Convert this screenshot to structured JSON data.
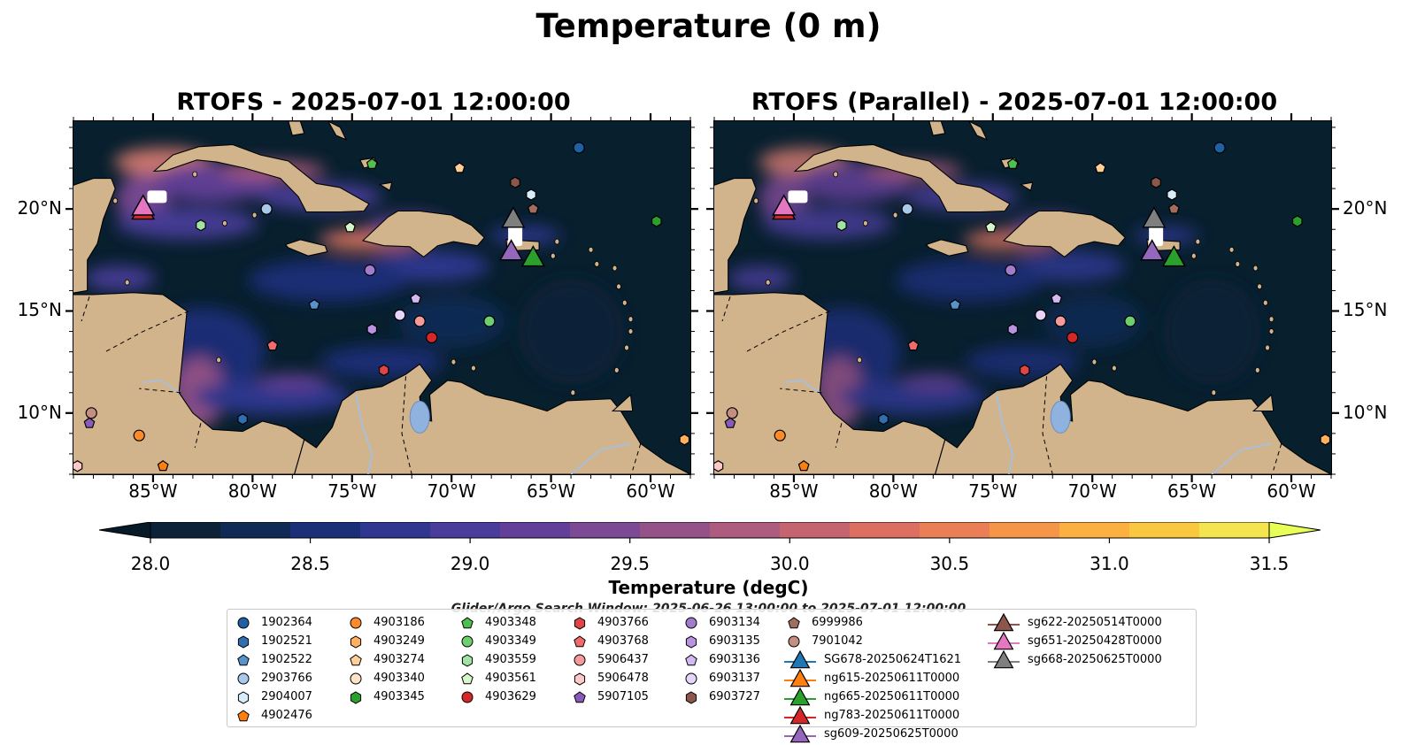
{
  "figure": {
    "title": "Temperature (0 m)",
    "search_window": "Glider/Argo Search Window: 2025-06-26 13:00:00 to 2025-07-01 12:00:00"
  },
  "panels": [
    {
      "title": "RTOFS - 2025-07-01 12:00:00"
    },
    {
      "title": "RTOFS (Parallel) - 2025-07-01 12:00:00"
    }
  ],
  "map_extent": {
    "lon_min": -89.0,
    "lon_max": -58.0,
    "lat_min": 7.0,
    "lat_max": 24.3
  },
  "axes": {
    "lon_ticks": [
      -85,
      -80,
      -75,
      -70,
      -65,
      -60
    ],
    "lon_labels": [
      "85°W",
      "80°W",
      "75°W",
      "70°W",
      "65°W",
      "60°W"
    ],
    "lat_ticks": [
      10,
      15,
      20
    ],
    "lat_labels": [
      "10°N",
      "15°N",
      "20°N"
    ]
  },
  "colorbar": {
    "label": "Temperature (degC)",
    "min": 28.0,
    "max": 31.5,
    "step": 0.25,
    "ticks": [
      28.0,
      28.5,
      29.0,
      29.5,
      30.0,
      30.5,
      31.0,
      31.5
    ],
    "tick_labels": [
      "28.0",
      "28.5",
      "29.0",
      "29.5",
      "30.0",
      "30.5",
      "31.0",
      "31.5"
    ],
    "colors": [
      "#0b2237",
      "#0e2a55",
      "#1a2f78",
      "#2f3791",
      "#4a3c9a",
      "#633f99",
      "#7c4994",
      "#955289",
      "#ad5c80",
      "#c5636f",
      "#dc6e62",
      "#ea7f55",
      "#f59548",
      "#fbb03f",
      "#fac83f",
      "#f4e54e"
    ],
    "extend_under": "#071a28",
    "extend_over": "#e8ff58"
  },
  "colors": {
    "ocean": "#081f2e",
    "land": "#d2b48c",
    "rivers": "#a9bfd9",
    "lake": "#8fb2df"
  },
  "argo_floats": [
    {
      "id": "1902364",
      "lon": -63.6,
      "lat": 23.0,
      "shape": "circle",
      "color": "#1f5fa3"
    },
    {
      "id": "1902521",
      "lon": -80.5,
      "lat": 9.7,
      "shape": "hexagon",
      "color": "#2f6fb0"
    },
    {
      "id": "1902522",
      "lon": -76.9,
      "lat": 15.3,
      "shape": "pentagon",
      "color": "#5792cc"
    },
    {
      "id": "2903766",
      "lon": -79.3,
      "lat": 20.0,
      "shape": "circle",
      "color": "#a9c9ea"
    },
    {
      "id": "2904007",
      "lon": -66.0,
      "lat": 20.7,
      "shape": "hexagon",
      "color": "#d8ecfa"
    },
    {
      "id": "4902476",
      "lon": -84.5,
      "lat": 7.4,
      "shape": "pentagon",
      "color": "#ff7f0e"
    },
    {
      "id": "4903186",
      "lon": -85.7,
      "lat": 8.9,
      "shape": "circle",
      "color": "#ff8a2a"
    },
    {
      "id": "4903249",
      "lon": -58.3,
      "lat": 8.7,
      "shape": "hexagon",
      "color": "#ffb061"
    },
    {
      "id": "4903274",
      "lon": -69.6,
      "lat": 22.0,
      "shape": "pentagon",
      "color": "#ffcf99"
    },
    {
      "id": "4903340",
      "lon": -72.6,
      "lat": 14.8,
      "shape": "circle",
      "color": "#ffe3c8"
    },
    {
      "id": "4903345",
      "lon": -59.7,
      "lat": 19.4,
      "shape": "hexagon",
      "color": "#2ca02c"
    },
    {
      "id": "4903348",
      "lon": -74.0,
      "lat": 22.2,
      "shape": "pentagon",
      "color": "#4fbf4f"
    },
    {
      "id": "4903349",
      "lon": -68.1,
      "lat": 14.5,
      "shape": "circle",
      "color": "#6fcf6f"
    },
    {
      "id": "4903559",
      "lon": -82.6,
      "lat": 19.2,
      "shape": "hexagon",
      "color": "#a2e3a2"
    },
    {
      "id": "4903561",
      "lon": -75.1,
      "lat": 19.1,
      "shape": "pentagon",
      "color": "#d6f7c9"
    },
    {
      "id": "4903629",
      "lon": -71.0,
      "lat": 13.7,
      "shape": "circle",
      "color": "#d62728"
    },
    {
      "id": "4903766",
      "lon": -73.4,
      "lat": 12.1,
      "shape": "hexagon",
      "color": "#e04545"
    },
    {
      "id": "4903768",
      "lon": -79.0,
      "lat": 13.3,
      "shape": "pentagon",
      "color": "#f26b6b"
    },
    {
      "id": "5906437",
      "lon": -71.6,
      "lat": 14.5,
      "shape": "circle",
      "color": "#f59a9a"
    },
    {
      "id": "5906478",
      "lon": -88.8,
      "lat": 7.4,
      "shape": "hexagon",
      "color": "#fcc8c8"
    },
    {
      "id": "5907105",
      "lon": -88.2,
      "lat": 9.5,
      "shape": "pentagon",
      "color": "#8a5ab8"
    },
    {
      "id": "6903134",
      "lon": -74.1,
      "lat": 17.0,
      "shape": "circle",
      "color": "#a27ccc"
    },
    {
      "id": "6903135",
      "lon": -74.0,
      "lat": 14.1,
      "shape": "hexagon",
      "color": "#b993e0"
    },
    {
      "id": "6903136",
      "lon": -71.8,
      "lat": 15.6,
      "shape": "pentagon",
      "color": "#d3b8f2"
    },
    {
      "id": "6903137",
      "lon": -72.6,
      "lat": 14.8,
      "shape": "circle",
      "color": "#e6d4fb"
    },
    {
      "id": "6903727",
      "lon": -66.8,
      "lat": 21.3,
      "shape": "hexagon",
      "color": "#8c564b"
    },
    {
      "id": "6999986",
      "lon": -65.9,
      "lat": 20.0,
      "shape": "pentagon",
      "color": "#a06d5f"
    },
    {
      "id": "7901042",
      "lon": -88.1,
      "lat": 10.0,
      "shape": "circle",
      "color": "#c48f82"
    }
  ],
  "gliders": [
    {
      "id": "SG678-20250624T1621",
      "lon": -66.7,
      "lat": 19.5,
      "color": "#1f77b4",
      "shown": false
    },
    {
      "id": "ng615-20250611T0000",
      "lon": -66.3,
      "lat": 17.8,
      "color": "#ff7f0e",
      "shown": false
    },
    {
      "id": "ng665-20250611T0000",
      "lon": -65.9,
      "lat": 17.6,
      "color": "#2ca02c",
      "shown": true
    },
    {
      "id": "ng783-20250611T0000",
      "lon": -85.5,
      "lat": 19.9,
      "color": "#d62728",
      "shown": true
    },
    {
      "id": "sg609-20250625T0000",
      "lon": -67.0,
      "lat": 17.9,
      "color": "#9467bd",
      "shown": true
    },
    {
      "id": "sg622-20250514T0000",
      "lon": -85.4,
      "lat": 19.8,
      "color": "#8c564b",
      "shown": false
    },
    {
      "id": "sg651-20250428T0000",
      "lon": -85.5,
      "lat": 20.1,
      "color": "#e377c2",
      "shown": true
    },
    {
      "id": "sg668-20250625T0000",
      "lon": -66.9,
      "lat": 19.5,
      "color": "#7f7f7f",
      "shown": true
    }
  ]
}
